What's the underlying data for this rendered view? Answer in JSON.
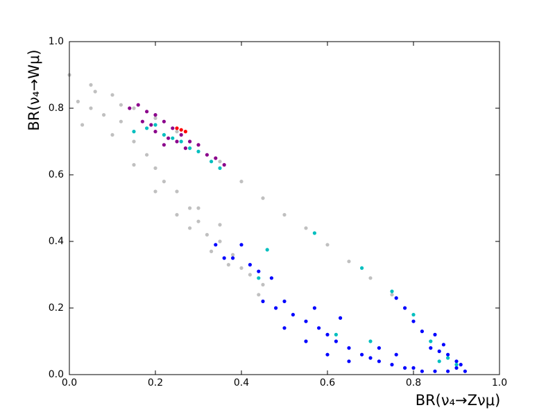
{
  "chart_data": {
    "type": "scatter",
    "xlabel": "BR(ν₄→Zνμ)",
    "ylabel": "BR(ν₄→Wμ)",
    "xlim": [
      0,
      1
    ],
    "ylim": [
      0,
      1
    ],
    "xticks": [
      {
        "value": 0,
        "label": "0.0"
      },
      0.2,
      0.4,
      0.6,
      0.8,
      {
        "value": 1,
        "label": "1.0"
      }
    ],
    "yticks": [
      {
        "value": 0,
        "label": "0.0"
      },
      0.2,
      0.4,
      0.6,
      0.8,
      {
        "value": 1,
        "label": "1.0"
      }
    ],
    "series": [
      {
        "color": "#c0c0c0",
        "x": [
          0.0,
          0.05,
          0.1,
          0.15,
          0.2,
          0.25,
          0.3,
          0.35,
          0.4,
          0.45,
          0.5,
          0.55,
          0.6,
          0.65,
          0.7,
          0.75,
          0.02,
          0.05,
          0.08,
          0.03,
          0.1,
          0.12,
          0.15,
          0.18,
          0.2,
          0.15,
          0.22,
          0.25,
          0.2,
          0.28,
          0.25,
          0.3,
          0.32,
          0.28,
          0.35,
          0.33,
          0.38,
          0.4,
          0.37,
          0.42,
          0.45,
          0.44,
          0.3,
          0.35,
          0.06,
          0.12
        ],
        "y": [
          0.9,
          0.87,
          0.84,
          0.8,
          0.77,
          0.73,
          0.69,
          0.64,
          0.58,
          0.53,
          0.48,
          0.44,
          0.39,
          0.34,
          0.29,
          0.24,
          0.82,
          0.8,
          0.78,
          0.75,
          0.72,
          0.76,
          0.7,
          0.66,
          0.62,
          0.63,
          0.58,
          0.55,
          0.55,
          0.5,
          0.48,
          0.46,
          0.42,
          0.44,
          0.4,
          0.37,
          0.36,
          0.32,
          0.33,
          0.3,
          0.27,
          0.24,
          0.5,
          0.45,
          0.85,
          0.81
        ]
      },
      {
        "color": "#8b008b",
        "x": [
          0.14,
          0.16,
          0.18,
          0.2,
          0.17,
          0.22,
          0.2,
          0.24,
          0.26,
          0.23,
          0.28,
          0.3,
          0.27,
          0.32,
          0.34,
          0.36,
          0.19,
          0.25,
          0.22
        ],
        "y": [
          0.8,
          0.81,
          0.79,
          0.78,
          0.76,
          0.76,
          0.73,
          0.74,
          0.72,
          0.71,
          0.7,
          0.69,
          0.68,
          0.66,
          0.65,
          0.63,
          0.75,
          0.7,
          0.69
        ]
      },
      {
        "color": "#ff0000",
        "x": [
          0.25,
          0.26,
          0.27
        ],
        "y": [
          0.74,
          0.735,
          0.73
        ]
      },
      {
        "color": "#0000ff",
        "x": [
          0.34,
          0.36,
          0.38,
          0.4,
          0.42,
          0.44,
          0.47,
          0.45,
          0.48,
          0.5,
          0.52,
          0.55,
          0.58,
          0.6,
          0.62,
          0.65,
          0.68,
          0.7,
          0.72,
          0.75,
          0.78,
          0.8,
          0.82,
          0.85,
          0.88,
          0.9,
          0.92,
          0.55,
          0.6,
          0.65,
          0.5,
          0.57,
          0.63,
          0.76,
          0.78,
          0.8,
          0.82,
          0.84,
          0.86,
          0.88,
          0.9,
          0.91,
          0.85,
          0.87,
          0.72,
          0.76
        ],
        "y": [
          0.39,
          0.35,
          0.35,
          0.39,
          0.33,
          0.31,
          0.29,
          0.22,
          0.2,
          0.22,
          0.18,
          0.16,
          0.14,
          0.12,
          0.1,
          0.08,
          0.06,
          0.05,
          0.04,
          0.03,
          0.02,
          0.02,
          0.01,
          0.01,
          0.01,
          0.02,
          0.01,
          0.1,
          0.06,
          0.04,
          0.14,
          0.2,
          0.17,
          0.23,
          0.2,
          0.16,
          0.13,
          0.08,
          0.07,
          0.06,
          0.04,
          0.03,
          0.12,
          0.09,
          0.08,
          0.06
        ]
      },
      {
        "color": "#00bfbf",
        "x": [
          0.15,
          0.18,
          0.2,
          0.22,
          0.24,
          0.26,
          0.28,
          0.3,
          0.33,
          0.35,
          0.46,
          0.44,
          0.57,
          0.68,
          0.75,
          0.8,
          0.84,
          0.86,
          0.88,
          0.9,
          0.62,
          0.7
        ],
        "y": [
          0.73,
          0.74,
          0.75,
          0.72,
          0.71,
          0.7,
          0.68,
          0.67,
          0.64,
          0.62,
          0.375,
          0.29,
          0.425,
          0.32,
          0.25,
          0.18,
          0.1,
          0.04,
          0.05,
          0.03,
          0.12,
          0.1
        ]
      }
    ]
  }
}
